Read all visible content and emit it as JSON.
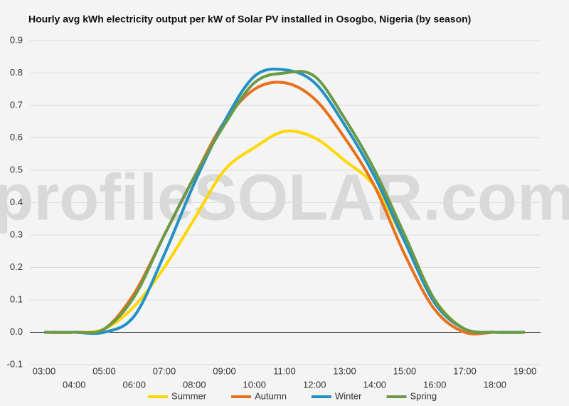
{
  "chart_data": {
    "type": "line",
    "title": "Hourly avg kWh electricity output per kW of Solar PV installed in Osogbo, Nigeria (by season)",
    "watermark": "profileSOLAR.com",
    "categories": [
      "03:00",
      "04:00",
      "05:00",
      "06:00",
      "07:00",
      "08:00",
      "09:00",
      "10:00",
      "11:00",
      "12:00",
      "13:00",
      "14:00",
      "15:00",
      "16:00",
      "17:00",
      "18:00",
      "19:00"
    ],
    "series": [
      {
        "name": "Summer",
        "color": "#ffd700",
        "values": [
          0,
          0,
          0.01,
          0.08,
          0.2,
          0.35,
          0.5,
          0.57,
          0.62,
          0.6,
          0.53,
          0.45,
          0.28,
          0.1,
          0.01,
          0,
          0
        ]
      },
      {
        "name": "Autumn",
        "color": "#e8711c",
        "values": [
          0,
          0,
          0.01,
          0.12,
          0.3,
          0.48,
          0.65,
          0.75,
          0.77,
          0.72,
          0.6,
          0.45,
          0.24,
          0.07,
          0,
          0,
          0
        ]
      },
      {
        "name": "Winter",
        "color": "#2391c4",
        "values": [
          0,
          0,
          0,
          0.05,
          0.24,
          0.46,
          0.65,
          0.79,
          0.81,
          0.77,
          0.64,
          0.48,
          0.28,
          0.09,
          0.01,
          0,
          0
        ]
      },
      {
        "name": "Spring",
        "color": "#6a9a48",
        "values": [
          0,
          0,
          0.01,
          0.11,
          0.3,
          0.48,
          0.64,
          0.77,
          0.8,
          0.79,
          0.66,
          0.5,
          0.3,
          0.1,
          0.01,
          0,
          0
        ]
      }
    ],
    "ylim": [
      -0.1,
      0.9
    ],
    "yticks": [
      -0.1,
      {
        "value": 0,
        "label": "0.0"
      },
      0.1,
      0.2,
      0.3,
      0.4,
      0.5,
      0.6,
      0.7,
      0.8,
      0.9
    ],
    "grid": true,
    "legend": "bottom"
  }
}
